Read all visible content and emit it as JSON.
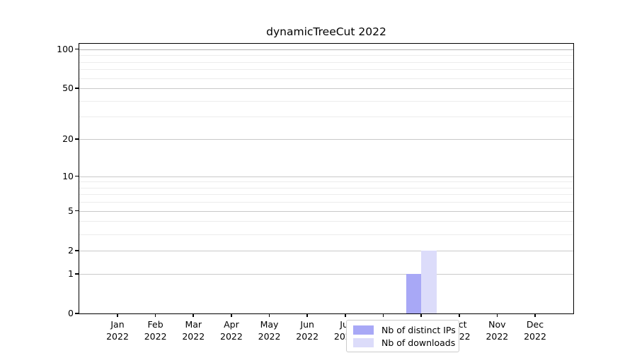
{
  "chart_data": {
    "type": "bar",
    "title": "dynamicTreeCut 2022",
    "categories": [
      "Jan 2022",
      "Feb 2022",
      "Mar 2022",
      "Apr 2022",
      "May 2022",
      "Jun 2022",
      "Jul 2022",
      "Aug 2022",
      "Sep 2022",
      "Oct 2022",
      "Nov 2022",
      "Dec 2022"
    ],
    "series": [
      {
        "name": "Nb of distinct IPs",
        "color": "#a8a8f6",
        "values": [
          0,
          0,
          0,
          0,
          0,
          0,
          0,
          0,
          1,
          0,
          0,
          0
        ]
      },
      {
        "name": "Nb of downloads",
        "color": "#dcdcfa",
        "values": [
          0,
          0,
          0,
          0,
          0,
          0,
          0,
          0,
          2,
          0,
          0,
          0
        ]
      }
    ],
    "y_axis": {
      "scale": "log1p",
      "ticks_major": [
        0,
        1,
        2,
        5,
        10,
        20,
        50,
        100
      ],
      "ticks_minor": [
        3,
        4,
        6,
        7,
        8,
        9,
        30,
        40,
        60,
        70,
        80,
        90
      ],
      "ylim": [
        0,
        110
      ]
    },
    "x_axis": {
      "ticks": "months of 2022"
    },
    "grid": {
      "which": "both",
      "major_color": "#c9c9c9",
      "minor_color": "#ececec",
      "top_line_color": "#b3b3b3"
    },
    "legend": {
      "position": "bottom-center",
      "border_color": "#cccccc"
    },
    "colors": {
      "axis": "#000000",
      "background": "#ffffff"
    }
  }
}
